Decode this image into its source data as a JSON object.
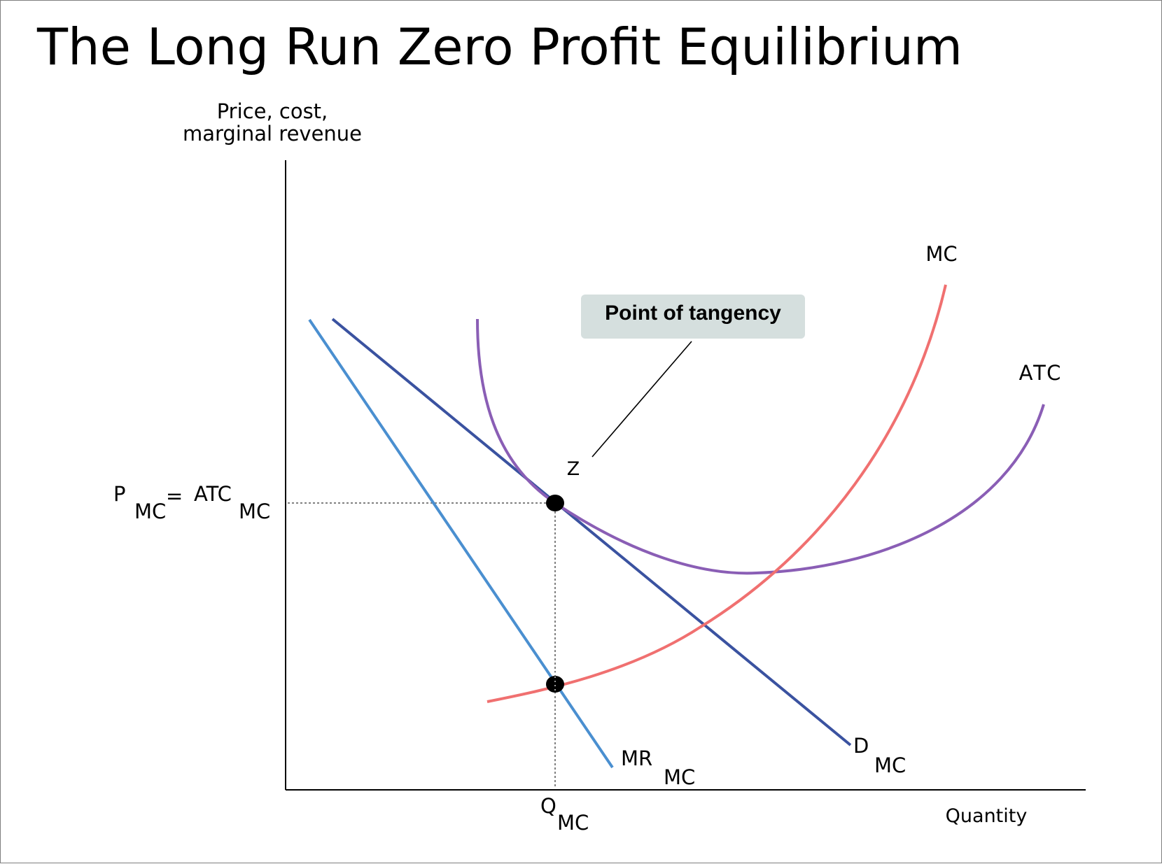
{
  "slide": {
    "title": "The Long Run Zero Profit Equilibrium"
  },
  "chart_data": {
    "type": "line",
    "title": "",
    "axes": {
      "y_label_line1": "Price, cost,",
      "y_label_line2": "marginal revenue",
      "x_label": "Quantity"
    },
    "curves": [
      {
        "name": "MC",
        "color": "#f07070",
        "label_main": "MC",
        "label_sub": ""
      },
      {
        "name": "ATC",
        "color": "#8a5eb5",
        "label_main": "ATC",
        "label_sub": ""
      },
      {
        "name": "D",
        "color": "#3a52a0",
        "label_main": "D",
        "label_sub": "MC"
      },
      {
        "name": "MR",
        "color": "#4a8fd0",
        "label_main": "MR",
        "label_sub": "MC"
      }
    ],
    "points": [
      {
        "name": "Z",
        "label": "Z",
        "description": "tangency of D and ATC"
      },
      {
        "name": "MR-MC intersection",
        "label": ""
      }
    ],
    "price_label": {
      "p": "P",
      "p_sub": "MC",
      "eq": "=",
      "atc": "ATC",
      "atc_sub": "MC"
    },
    "quantity_label": {
      "q": "Q",
      "q_sub": "MC"
    },
    "callout": {
      "text": "Point of tangency",
      "bg": "#d5dfde"
    },
    "colors": {
      "axis": "#000000",
      "guides": "#808080",
      "point": "#000000"
    }
  }
}
